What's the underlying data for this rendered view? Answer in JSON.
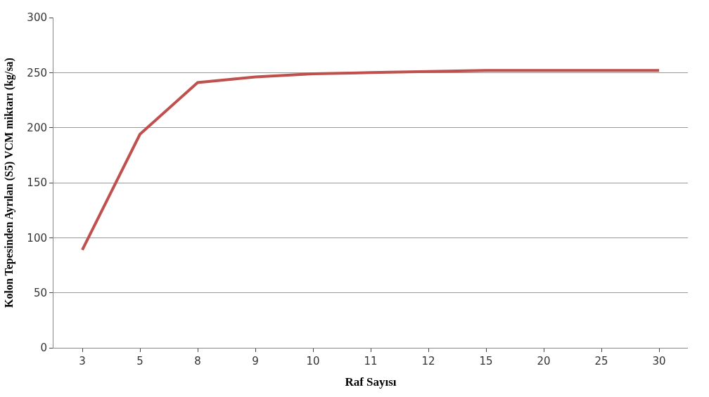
{
  "chart_data": {
    "type": "line",
    "xlabel": "Raf Sayısı",
    "ylabel": "Kolon Tepesinden Ayrılan (S5) VCM miktarı (kg/sa)",
    "categories": [
      "3",
      "5",
      "8",
      "9",
      "10",
      "11",
      "12",
      "15",
      "20",
      "25",
      "30"
    ],
    "series": [
      {
        "color": "#c0504d",
        "values": [
          89,
          194,
          241,
          246,
          249,
          250,
          251,
          252,
          252,
          252,
          252
        ]
      }
    ],
    "ylim": [
      0,
      300
    ],
    "yticks": [
      0,
      50,
      100,
      150,
      200,
      250,
      300
    ],
    "grid": "y",
    "marker": "none",
    "line_style": "solid"
  }
}
